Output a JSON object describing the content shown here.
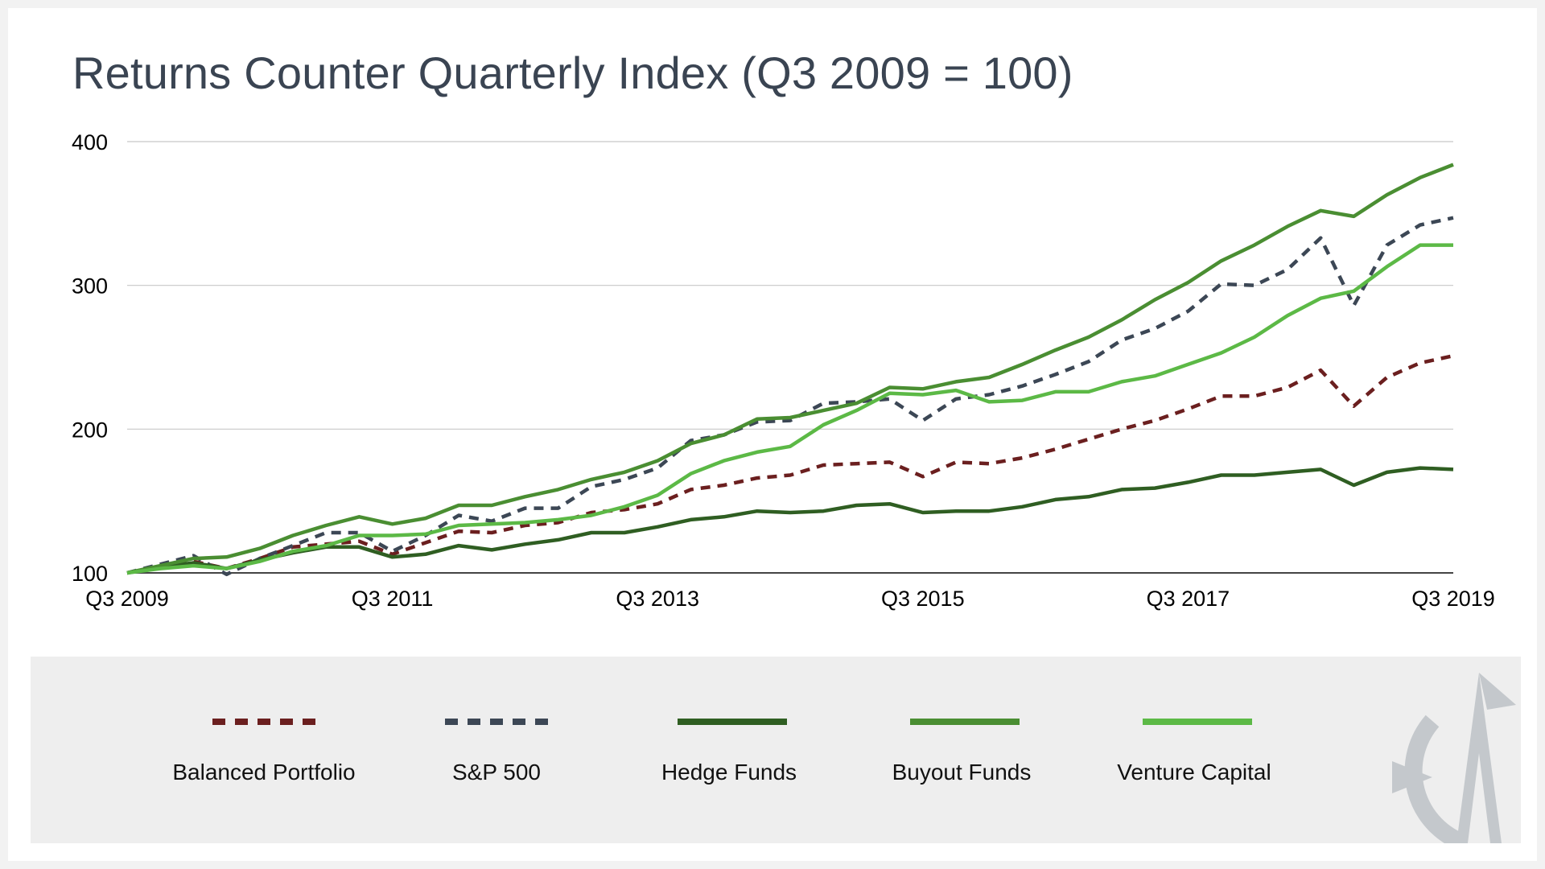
{
  "title": "Returns Counter Quarterly Index (Q3 2009 = 100)",
  "chart_data": {
    "type": "line",
    "title": "Returns Counter Quarterly Index (Q3 2009 = 100)",
    "xlabel": "",
    "ylabel": "",
    "ylim": [
      100,
      400
    ],
    "yticks": [
      "100",
      "200",
      "300",
      "400"
    ],
    "xticks": [
      "Q3 2009",
      "Q3 2011",
      "Q3 2013",
      "Q3 2015",
      "Q3 2017",
      "Q3 2019"
    ],
    "grid": true,
    "legend_position": "bottom",
    "x": [
      "Q3 2009",
      "Q4 2009",
      "Q1 2010",
      "Q2 2010",
      "Q3 2010",
      "Q4 2010",
      "Q1 2011",
      "Q2 2011",
      "Q3 2011",
      "Q4 2011",
      "Q1 2012",
      "Q2 2012",
      "Q3 2012",
      "Q4 2012",
      "Q1 2013",
      "Q2 2013",
      "Q3 2013",
      "Q4 2013",
      "Q1 2014",
      "Q2 2014",
      "Q3 2014",
      "Q4 2014",
      "Q1 2015",
      "Q2 2015",
      "Q3 2015",
      "Q4 2015",
      "Q1 2016",
      "Q2 2016",
      "Q3 2016",
      "Q4 2016",
      "Q1 2017",
      "Q2 2017",
      "Q3 2017",
      "Q4 2017",
      "Q1 2018",
      "Q2 2018",
      "Q3 2018",
      "Q4 2018",
      "Q1 2019",
      "Q2 2019",
      "Q3 2019"
    ],
    "series": [
      {
        "name": "Balanced Portfolio",
        "color": "#6b1f1f",
        "style": "dashed",
        "values": [
          100,
          105,
          108,
          103,
          110,
          118,
          120,
          122,
          113,
          121,
          129,
          128,
          133,
          135,
          142,
          144,
          148,
          158,
          161,
          166,
          168,
          175,
          176,
          177,
          167,
          177,
          176,
          180,
          186,
          193,
          200,
          206,
          214,
          223,
          223,
          229,
          241,
          216,
          236,
          246,
          251
        ]
      },
      {
        "name": "S&P 500",
        "color": "#3c4755",
        "style": "dashed",
        "values": [
          100,
          106,
          112,
          99,
          110,
          119,
          128,
          128,
          115,
          126,
          140,
          136,
          145,
          145,
          160,
          165,
          173,
          192,
          196,
          205,
          206,
          218,
          219,
          221,
          206,
          221,
          224,
          230,
          238,
          247,
          262,
          270,
          282,
          301,
          300,
          311,
          333,
          286,
          328,
          342,
          347
        ]
      },
      {
        "name": "Hedge Funds",
        "color": "#2f5e22",
        "style": "solid",
        "values": [
          100,
          104,
          107,
          103,
          109,
          114,
          118,
          118,
          111,
          113,
          119,
          116,
          120,
          123,
          128,
          128,
          132,
          137,
          139,
          143,
          142,
          143,
          147,
          148,
          142,
          143,
          143,
          146,
          151,
          153,
          158,
          159,
          163,
          168,
          168,
          170,
          172,
          161,
          170,
          173,
          172
        ]
      },
      {
        "name": "Buyout Funds",
        "color": "#4a8e32",
        "style": "solid",
        "values": [
          100,
          105,
          110,
          111,
          117,
          126,
          133,
          139,
          134,
          138,
          147,
          147,
          153,
          158,
          165,
          170,
          178,
          190,
          196,
          207,
          208,
          213,
          218,
          229,
          228,
          233,
          236,
          245,
          255,
          264,
          276,
          290,
          302,
          317,
          328,
          341,
          352,
          348,
          363,
          375,
          384
        ]
      },
      {
        "name": "Venture Capital",
        "color": "#5cb946",
        "style": "solid",
        "values": [
          100,
          103,
          105,
          103,
          108,
          115,
          119,
          126,
          126,
          127,
          133,
          134,
          135,
          137,
          140,
          146,
          154,
          169,
          178,
          184,
          188,
          203,
          213,
          225,
          224,
          227,
          219,
          220,
          226,
          226,
          233,
          237,
          245,
          253,
          264,
          279,
          291,
          296,
          313,
          328,
          328
        ]
      }
    ]
  },
  "legend": [
    {
      "label": "Balanced Portfolio"
    },
    {
      "label": "S&P 500"
    },
    {
      "label": "Hedge Funds"
    },
    {
      "label": "Buyout Funds"
    },
    {
      "label": "Venture Capital"
    }
  ],
  "logo": {
    "icon": "compass-a-logo"
  }
}
